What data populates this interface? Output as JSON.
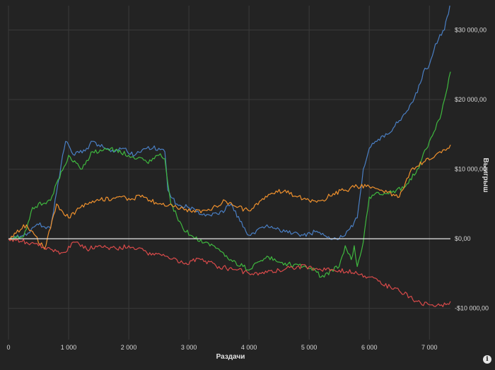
{
  "chart_data": {
    "type": "line",
    "xlabel": "Раздачи",
    "ylabel": "Выигрыш",
    "xlim": [
      0,
      7350
    ],
    "ylim": [
      -14500,
      33500
    ],
    "x_ticks": [
      {
        "value": 0,
        "label": "0"
      },
      {
        "value": 1000,
        "label": "1 000"
      },
      {
        "value": 2000,
        "label": "2 000"
      },
      {
        "value": 3000,
        "label": "3 000"
      },
      {
        "value": 4000,
        "label": "4 000"
      },
      {
        "value": 5000,
        "label": "5 000"
      },
      {
        "value": 6000,
        "label": "6 000"
      },
      {
        "value": 7000,
        "label": "7 000"
      }
    ],
    "y_ticks": [
      {
        "value": 30000,
        "label": "$30 000,00"
      },
      {
        "value": 20000,
        "label": "$20 000,00"
      },
      {
        "value": 10000,
        "label": "$10 000,00"
      },
      {
        "value": 0,
        "label": "$0,00"
      },
      {
        "value": -10000,
        "label": "-$10 000,00"
      }
    ],
    "grid": true,
    "colors": {
      "background": "#232323",
      "grid": "#3a3a3a",
      "zero_line": "#e8e8e8",
      "axis_text": "#d8d8d8"
    },
    "series": [
      {
        "color": "#4a7fc4",
        "x": [
          0,
          250,
          500,
          700,
          900,
          950,
          1100,
          1300,
          1400,
          1500,
          1700,
          1900,
          2100,
          2300,
          2500,
          2600,
          2650,
          2700,
          2800,
          3000,
          3200,
          3500,
          3700,
          3850,
          4000,
          4300,
          4600,
          4900,
          5100,
          5400,
          5500,
          5600,
          5800,
          5900,
          6000,
          6100,
          6300,
          6500,
          6600,
          6800,
          6900,
          7000,
          7100,
          7250,
          7340
        ],
        "y": [
          0,
          500,
          2000,
          1500,
          12000,
          14000,
          12000,
          13000,
          14000,
          13500,
          12500,
          13000,
          12000,
          13000,
          13000,
          12500,
          7000,
          6000,
          5000,
          4500,
          3500,
          3500,
          5000,
          2500,
          500,
          2000,
          1000,
          500,
          1000,
          0,
          0,
          500,
          3000,
          10000,
          13000,
          14000,
          15000,
          17000,
          18000,
          21000,
          24000,
          25000,
          28000,
          30000,
          33500
        ]
      },
      {
        "color": "#3fb83f",
        "x": [
          0,
          250,
          400,
          700,
          800,
          1000,
          1200,
          1400,
          1700,
          2000,
          2300,
          2500,
          2600,
          2650,
          2700,
          2900,
          3100,
          3300,
          3500,
          3700,
          3900,
          4000,
          4100,
          4300,
          4600,
          4900,
          5100,
          5200,
          5500,
          5550,
          5600,
          5700,
          5750,
          5800,
          5900,
          6000,
          6100,
          6300,
          6450,
          6600,
          6800,
          7000,
          7200,
          7350
        ],
        "y": [
          0,
          300,
          4500,
          5500,
          8000,
          12000,
          10000,
          12500,
          13000,
          12000,
          11000,
          12000,
          11500,
          8000,
          5000,
          1500,
          0,
          -500,
          -1500,
          -3000,
          -4000,
          -4500,
          -3500,
          -2500,
          -3500,
          -4000,
          -4500,
          -5500,
          -4000,
          -2500,
          -1000,
          -3000,
          -1000,
          -4000,
          -500,
          6000,
          6500,
          6500,
          7000,
          7500,
          10000,
          14000,
          18000,
          24000
        ]
      },
      {
        "color": "#f0912d",
        "x": [
          0,
          300,
          600,
          800,
          1000,
          1200,
          1500,
          1800,
          2000,
          2200,
          2500,
          2800,
          3100,
          3400,
          3600,
          3800,
          4000,
          4200,
          4400,
          4600,
          4800,
          5000,
          5200,
          5400,
          5600,
          5800,
          6000,
          6200,
          6500,
          6700,
          6900,
          7100,
          7350
        ],
        "y": [
          0,
          2000,
          -1500,
          5000,
          3000,
          4500,
          5500,
          6000,
          5800,
          6000,
          5000,
          4500,
          3800,
          4500,
          5500,
          4500,
          4000,
          5500,
          6500,
          7000,
          6000,
          5500,
          5500,
          6500,
          7000,
          7500,
          7500,
          7000,
          6000,
          10000,
          11000,
          12000,
          13500
        ]
      },
      {
        "color": "#d94a4a",
        "x": [
          0,
          300,
          500,
          700,
          900,
          1100,
          1300,
          1500,
          1800,
          2000,
          2300,
          2600,
          2900,
          3200,
          3500,
          3800,
          4000,
          4200,
          4500,
          4800,
          5000,
          5200,
          5500,
          5800,
          6000,
          6200,
          6500,
          6800,
          7000,
          7200,
          7350
        ],
        "y": [
          0,
          -500,
          -1000,
          -1500,
          -2000,
          -500,
          -1500,
          -1000,
          -1500,
          -1000,
          -2000,
          -2500,
          -3500,
          -3000,
          -4000,
          -4500,
          -5000,
          -5000,
          -4500,
          -4000,
          -4000,
          -4500,
          -4500,
          -5000,
          -5500,
          -6500,
          -7500,
          -9000,
          -9500,
          -9500,
          -9000
        ]
      }
    ]
  }
}
